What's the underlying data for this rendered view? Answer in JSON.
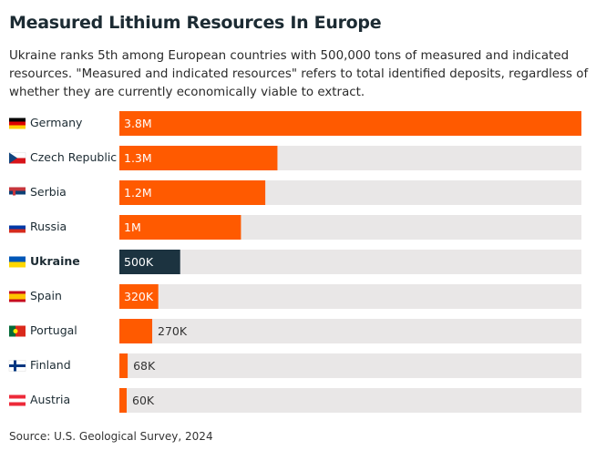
{
  "chart_data": {
    "type": "bar",
    "orientation": "horizontal",
    "title": "Measured Lithium Resources In Europe",
    "subtitle": "Ukraine ranks 5th among European countries with 500,000 tons of measured and indicated resources. \"Measured and indicated resources\" refers to total identified deposits, regardless of whether they are currently economically viable to extract.",
    "source": "Source: U.S. Geological Survey, 2024",
    "categories": [
      "Germany",
      "Czech Republic",
      "Serbia",
      "Russia",
      "Ukraine",
      "Spain",
      "Portugal",
      "Finland",
      "Austria"
    ],
    "values": [
      3800000,
      1300000,
      1200000,
      1000000,
      500000,
      320000,
      270000,
      68000,
      60000
    ],
    "value_labels": [
      "3.8M",
      "1.3M",
      "1.2M",
      "1M",
      "500K",
      "320K",
      "270K",
      "68K",
      "60K"
    ],
    "color": "#ff5a00",
    "highlight_index": 4,
    "highlight_color": "#1c3340",
    "track_color": "#e9e7e7"
  }
}
